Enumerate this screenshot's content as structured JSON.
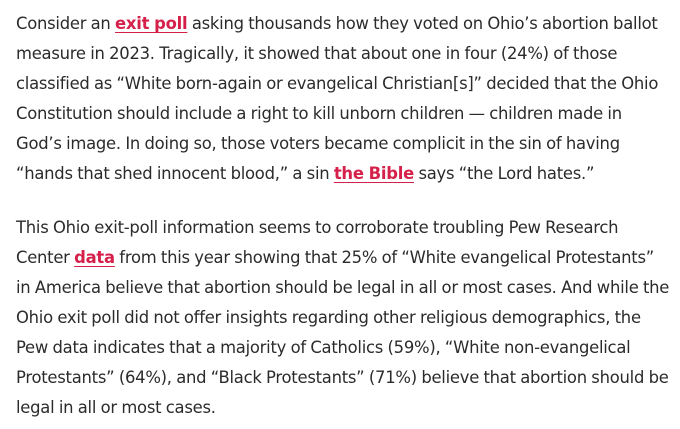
{
  "paragraphs": [
    {
      "parts": [
        {
          "text": "Consider an "
        },
        {
          "link": "exit poll"
        },
        {
          "text": " asking thousands how they voted on Ohio’s abortion ballot measure in 2023. Tragically, it showed that about one in four (24%) of those classified as “White born-again or evangelical Christian[s]” decided that the Ohio Constitution should include a right to kill unborn children — children made in God’s image. In doing so, those voters became complicit in the sin of having “hands that shed innocent blood,” a sin "
        },
        {
          "link": "the Bible"
        },
        {
          "text": " says “the Lord hates.”"
        }
      ]
    },
    {
      "parts": [
        {
          "text": "This Ohio exit-poll information seems to corroborate troubling Pew Research Center "
        },
        {
          "link": "data"
        },
        {
          "text": " from this year showing that 25% of “White evangelical Protestants” in America believe that abortion should be legal in all or most cases. And while the Ohio exit poll did not offer insights regarding other religious demographics, the Pew data indicates that a majority of Catholics (59%), “White non-evangelical Protestants” (64%), and “Black Protestants” (71%) believe that abortion should be legal in all or most cases."
        }
      ]
    }
  ]
}
